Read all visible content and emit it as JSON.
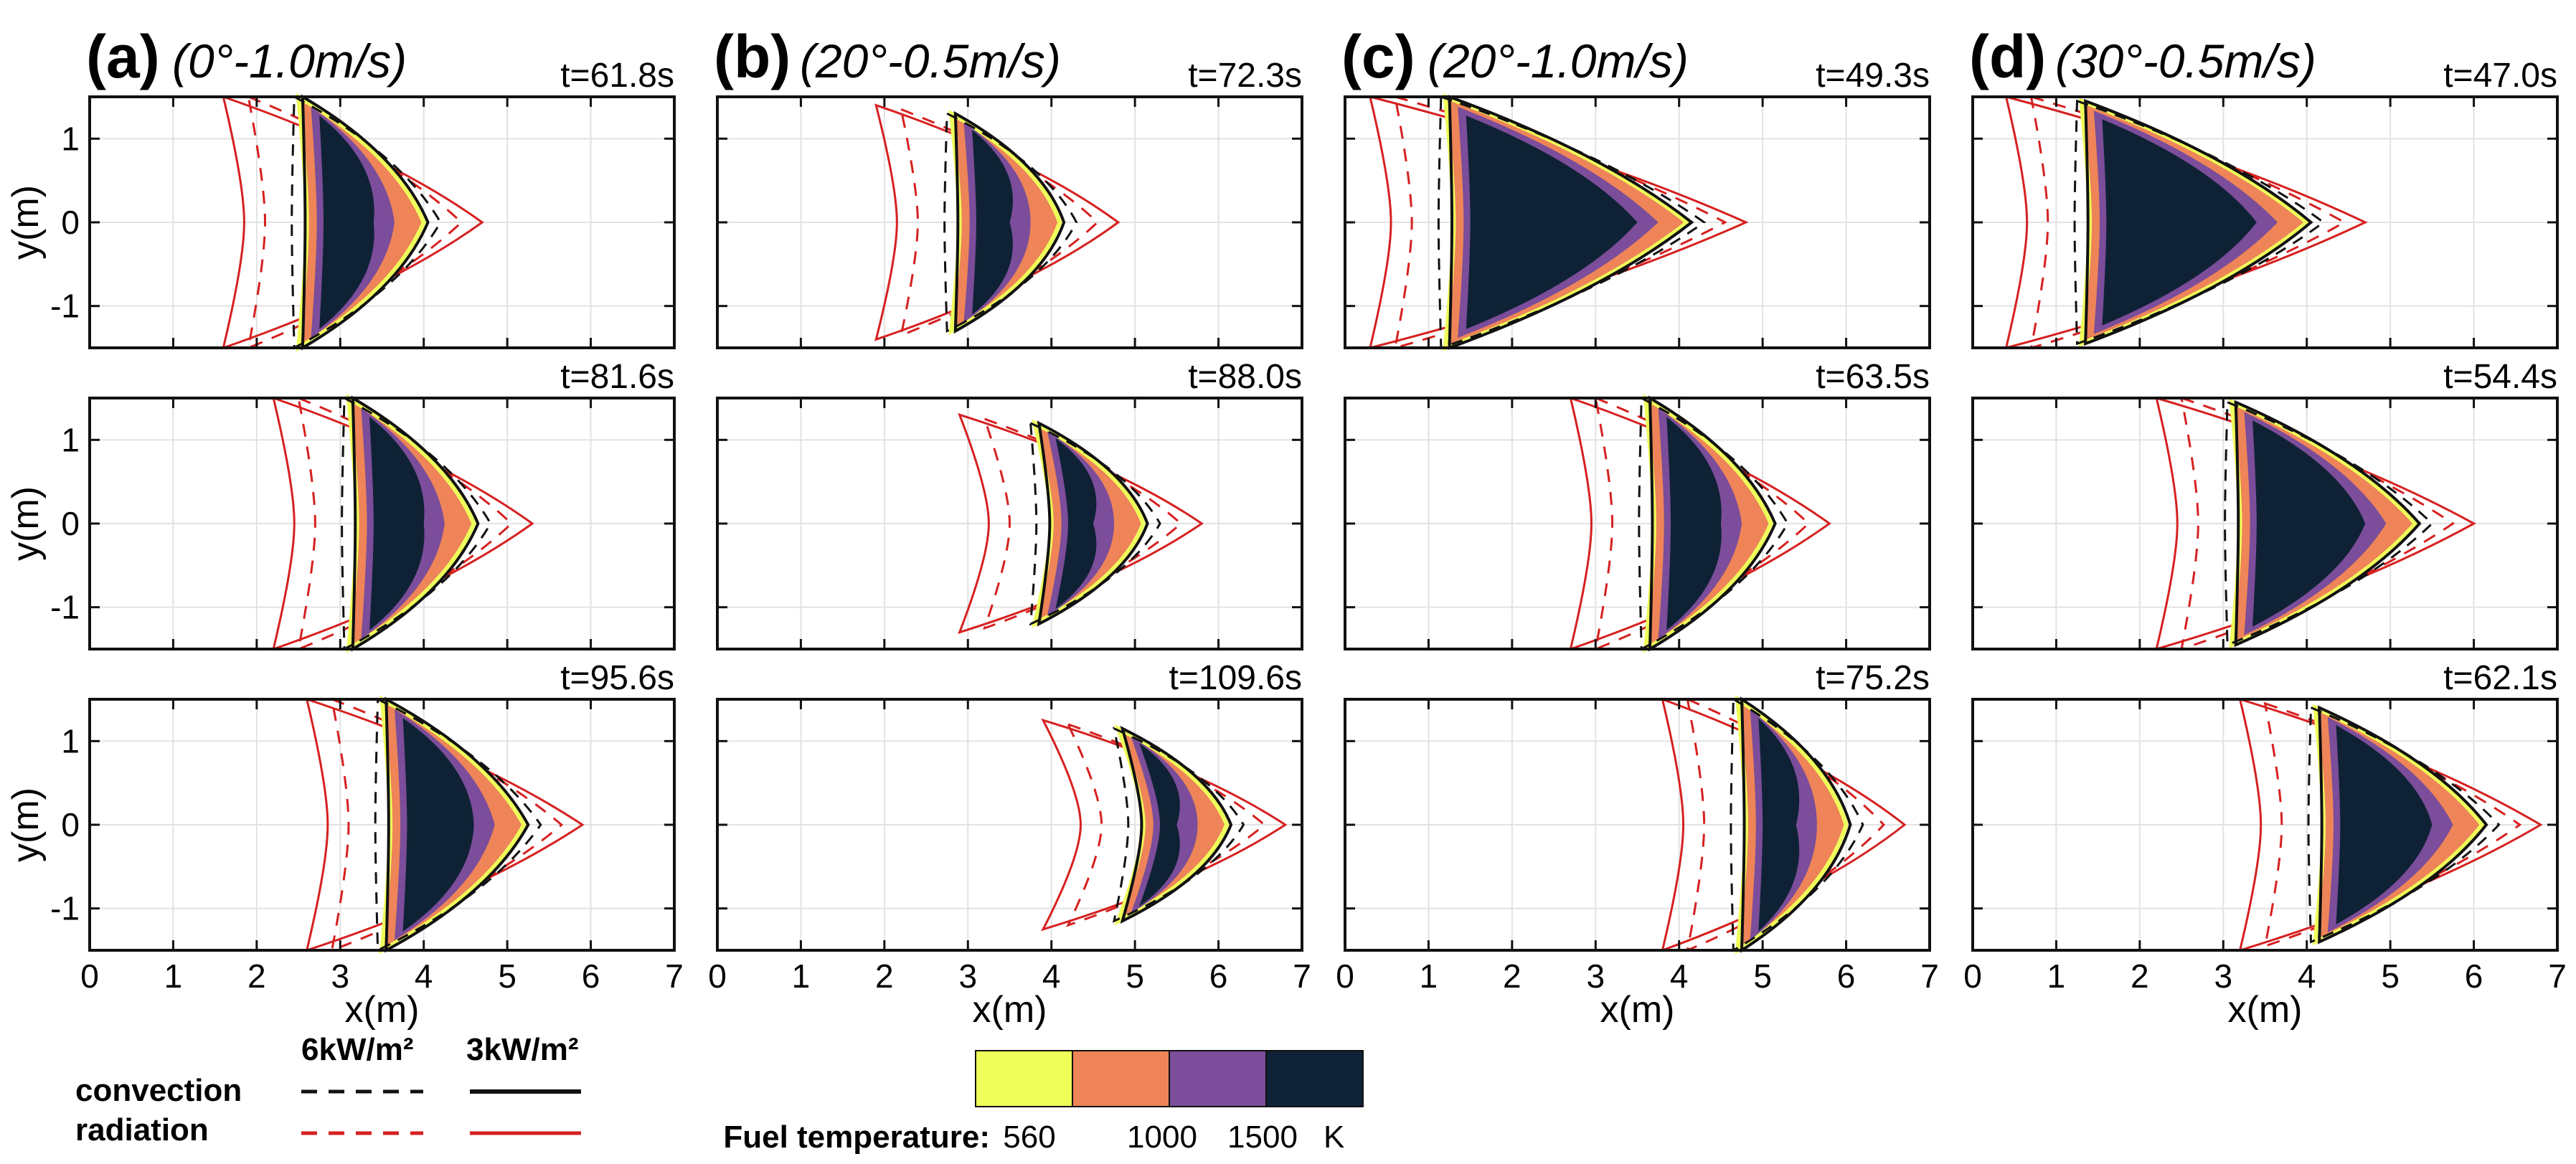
{
  "columns": [
    {
      "letter": "(a)",
      "condition": "(0°-1.0m/s)",
      "times": [
        "t=61.8s",
        "t=81.6s",
        "t=95.6s"
      ]
    },
    {
      "letter": "(b)",
      "condition": "(20°-0.5m/s)",
      "times": [
        "t=72.3s",
        "t=88.0s",
        "t=109.6s"
      ]
    },
    {
      "letter": "(c)",
      "condition": "(20°-1.0m/s)",
      "times": [
        "t=49.3s",
        "t=63.5s",
        "t=75.2s"
      ]
    },
    {
      "letter": "(d)",
      "condition": "(30°-0.5m/s)",
      "times": [
        "t=47.0s",
        "t=54.4s",
        "t=62.1s"
      ]
    }
  ],
  "axes": {
    "xlabel": "x(m)",
    "ylabel": "y(m)",
    "xlim": [
      0,
      7
    ],
    "ylim": [
      -1.5,
      1.5
    ],
    "xticks": [
      0,
      1,
      2,
      3,
      4,
      5,
      6,
      7
    ],
    "yticks": [
      -1,
      0,
      1
    ],
    "grid": true
  },
  "legend": {
    "header_6": "6kW/m²",
    "header_3": "3kW/m²",
    "row_convection": "convection",
    "row_radiation": "radiation",
    "convection_color": "#111111",
    "radiation_color": "#d62020"
  },
  "colorbar": {
    "label": "Fuel temperature:",
    "unit": "K",
    "tick_labels": [
      "560",
      "1000",
      "1500"
    ],
    "colors": [
      "#eeff5a",
      "#ee8458",
      "#7b4d9a",
      "#0f2235"
    ]
  },
  "chart_data": {
    "type": "contour",
    "title": "",
    "xlabel": "x(m)",
    "ylabel": "y(m)",
    "xlim": [
      0,
      7
    ],
    "ylim": [
      -1.5,
      1.5
    ],
    "series": [
      {
        "column": "(a)",
        "time_s": 61.8,
        "front_tip_x": 4.0,
        "inner_edge_x": 2.6,
        "tip_y": 1.5
      },
      {
        "column": "(a)",
        "time_s": 81.6,
        "front_tip_x": 4.6,
        "inner_edge_x": 3.2,
        "tip_y": 1.5
      },
      {
        "column": "(a)",
        "time_s": 95.6,
        "front_tip_x": 5.2,
        "inner_edge_x": 3.6,
        "tip_y": 1.5
      },
      {
        "column": "(b)",
        "time_s": 72.3,
        "front_tip_x": 4.1,
        "inner_edge_x": 2.9,
        "tip_y": 1.3
      },
      {
        "column": "(b)",
        "time_s": 88.0,
        "front_tip_x": 5.1,
        "inner_edge_x": 4.0,
        "tip_y": 1.2
      },
      {
        "column": "(b)",
        "time_s": 109.6,
        "front_tip_x": 6.1,
        "inner_edge_x": 5.1,
        "tip_y": 1.15
      },
      {
        "column": "(c)",
        "time_s": 49.3,
        "front_tip_x": 4.1,
        "inner_edge_x": 1.3,
        "tip_y": 1.5
      },
      {
        "column": "(c)",
        "time_s": 63.5,
        "front_tip_x": 5.1,
        "inner_edge_x": 3.7,
        "tip_y": 1.5
      },
      {
        "column": "(c)",
        "time_s": 75.2,
        "front_tip_x": 6.0,
        "inner_edge_x": 4.8,
        "tip_y": 1.5
      },
      {
        "column": "(d)",
        "time_s": 47.0,
        "front_tip_x": 4.0,
        "inner_edge_x": 1.4,
        "tip_y": 1.45
      },
      {
        "column": "(d)",
        "time_s": 54.4,
        "front_tip_x": 5.3,
        "inner_edge_x": 3.2,
        "tip_y": 1.45
      },
      {
        "column": "(d)",
        "time_s": 62.1,
        "front_tip_x": 6.1,
        "inner_edge_x": 4.2,
        "tip_y": 1.4
      }
    ]
  }
}
